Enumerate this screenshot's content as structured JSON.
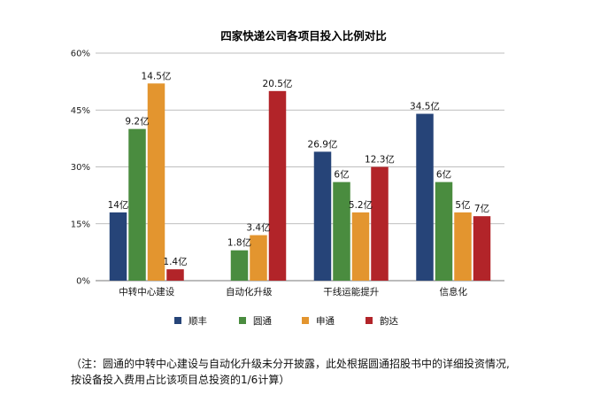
{
  "chart_data": {
    "type": "bar",
    "title": "四家快递公司各项目投入比例对比",
    "categories": [
      "中转中心建设",
      "自动化升级",
      "干线运能提升",
      "信息化"
    ],
    "ylim": [
      0,
      60
    ],
    "yticks": [
      0,
      15,
      30,
      45,
      60
    ],
    "ytick_labels": [
      "0%",
      "15%",
      "30%",
      "45%",
      "60%"
    ],
    "grid": true,
    "legend_position": "bottom",
    "series": [
      {
        "name": "顺丰",
        "color": "#264478",
        "values": [
          18,
          null,
          34,
          44
        ],
        "labels": [
          "14亿",
          "",
          "26.9亿",
          "34.5亿"
        ]
      },
      {
        "name": "圆通",
        "color": "#4a8c3f",
        "values": [
          40,
          8,
          26,
          26
        ],
        "labels": [
          "9.2亿",
          "1.8亿",
          "6亿",
          "6亿"
        ]
      },
      {
        "name": "申通",
        "color": "#e3952f",
        "values": [
          52,
          12,
          18,
          18
        ],
        "labels": [
          "14.5亿",
          "3.4亿",
          "5.2亿",
          "5亿"
        ]
      },
      {
        "name": "韵达",
        "color": "#b22429",
        "values": [
          3,
          50,
          30,
          17
        ],
        "labels": [
          "1.4亿",
          "20.5亿",
          "12.3亿",
          "7亿"
        ]
      }
    ]
  },
  "footnote": {
    "line1": "（注：圆通的中转中心建设与自动化升级未分开披露，此处根据圆通招股书中的详细投资情况,",
    "line2": "按设备投入费用占比该项目总投资的1/6计算）"
  }
}
